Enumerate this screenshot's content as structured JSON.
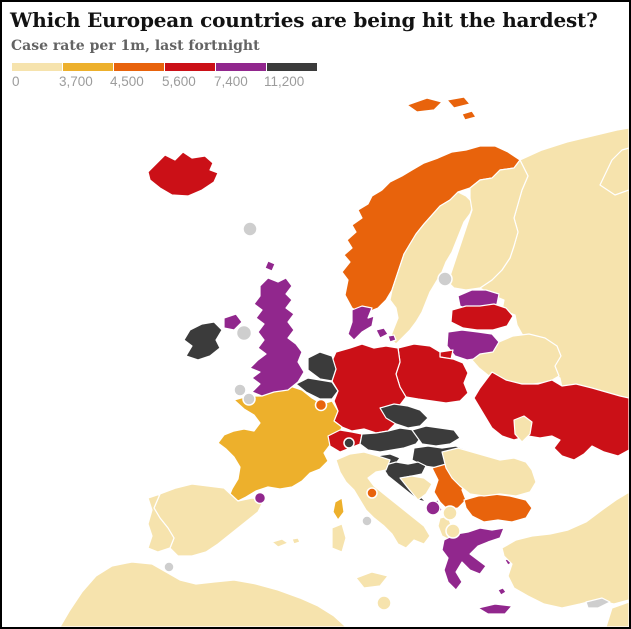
{
  "title": "Which European countries are being hit the hardest?",
  "subtitle": "Case rate per 1m, last fortnight",
  "legend": {
    "labels": [
      "0",
      "3,700",
      "4,500",
      "5,600",
      "7,400",
      "11,200"
    ],
    "colors": [
      "#f6e3ad",
      "#edb02c",
      "#e8630c",
      "#cb1017",
      "#91278d",
      "#3b3b3b"
    ]
  },
  "palette": {
    "cream": "#f6e3ad",
    "gold": "#edb02c",
    "orange": "#e8630c",
    "red": "#cb1017",
    "purple": "#91278d",
    "dark": "#3b3b3b",
    "no_data": "#cecece",
    "sea": "#ffffff",
    "border": "#ffffff"
  },
  "buckets": [
    {
      "min": "0",
      "color": "#f6e3ad",
      "countries": [
        "Sweden",
        "Finland",
        "Russia",
        "Belarus",
        "Moldova",
        "Romania",
        "Bosnia",
        "Albania",
        "Kosovo",
        "North Macedonia",
        "Spain",
        "Portugal",
        "Italy",
        "Malta",
        "Turkey"
      ]
    },
    {
      "min": "3,700",
      "color": "#edb02c",
      "countries": [
        "France"
      ]
    },
    {
      "min": "4,500",
      "color": "#e8630c",
      "countries": [
        "Norway",
        "Luxembourg",
        "Serbia",
        "Bulgaria",
        "San Marino"
      ]
    },
    {
      "min": "5,600",
      "color": "#cb1017",
      "countries": [
        "Iceland",
        "Germany",
        "Poland",
        "Switzerland",
        "Latvia",
        "Ukraine"
      ]
    },
    {
      "min": "7,400",
      "color": "#91278d",
      "countries": [
        "United Kingdom",
        "Denmark",
        "Estonia",
        "Lithuania",
        "Greece",
        "Montenegro",
        "Faroe Islands",
        "Andorra"
      ]
    },
    {
      "min": "11,200",
      "color": "#3b3b3b",
      "countries": [
        "Ireland",
        "Netherlands",
        "Belgium",
        "Czechia",
        "Austria",
        "Slovakia",
        "Hungary",
        "Slovenia",
        "Croatia",
        "Liechtenstein"
      ]
    }
  ],
  "map": {
    "country_fills": {
      "iceland": "#cb1017",
      "jan_mayen": "#cecece",
      "faroe_islands": "#91278d",
      "svalbard": "#e8630c",
      "norway": "#e8630c",
      "sweden": "#f6e3ad",
      "finland": "#f6e3ad",
      "russia": "#f6e3ad",
      "novaya_zemlya": "#f6e3ad",
      "estonia": "#91278d",
      "latvia": "#cb1017",
      "lithuania": "#91278d",
      "kaliningrad": "#cb1017",
      "belarus": "#f6e3ad",
      "ukraine": "#cb1017",
      "moldova": "#f6e3ad",
      "poland": "#cb1017",
      "germany": "#cb1017",
      "denmark": "#91278d",
      "netherlands": "#3b3b3b",
      "belgium": "#3b3b3b",
      "luxembourg": "#e8630c",
      "france": "#edb02c",
      "corsica": "#edb02c",
      "united_kingdom": "#91278d",
      "northern_ireland": "#91278d",
      "ireland": "#3b3b3b",
      "isle_of_man": "#cecece",
      "channel_islands": "#cecece",
      "spain": "#f6e3ad",
      "portugal": "#f6e3ad",
      "balearics": "#f6e3ad",
      "andorra": "#91278d",
      "gibraltar": "#cecece",
      "italy": "#f6e3ad",
      "sicily": "#f6e3ad",
      "sardinia": "#f6e3ad",
      "san_marino": "#e8630c",
      "vatican": "#cecece",
      "malta": "#f6e3ad",
      "switzerland": "#cb1017",
      "liechtenstein": "#3b3b3b",
      "austria": "#3b3b3b",
      "czechia": "#3b3b3b",
      "slovakia": "#3b3b3b",
      "hungary": "#3b3b3b",
      "slovenia": "#3b3b3b",
      "croatia": "#3b3b3b",
      "bosnia": "#f6e3ad",
      "serbia": "#e8630c",
      "montenegro": "#91278d",
      "kosovo": "#f6e3ad",
      "north_macedonia": "#f6e3ad",
      "albania": "#f6e3ad",
      "greece": "#91278d",
      "crete": "#91278d",
      "aegean_islands": "#91278d",
      "bulgaria": "#e8630c",
      "romania": "#f6e3ad",
      "turkey": "#f6e3ad",
      "cyprus": "#cecece",
      "aland": "#cecece",
      "north_africa": "#f6e3ad",
      "levant": "#f6e3ad"
    }
  }
}
